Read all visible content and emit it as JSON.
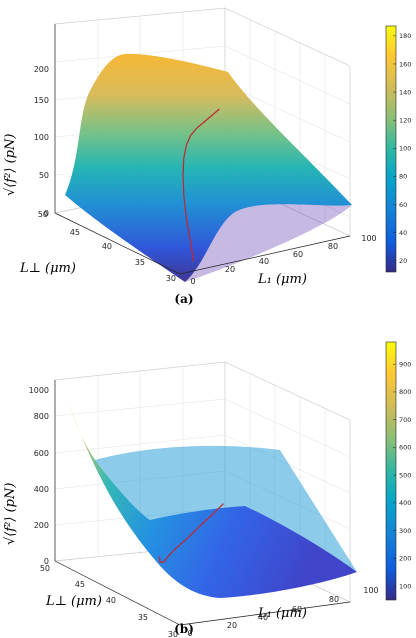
{
  "chart_data": [
    {
      "type": "surface3d",
      "caption": "(a)",
      "xlabel": "L₁ (μm)",
      "ylabel": "L⊥ (μm)",
      "zlabel": "√⟨f²⟩ (pN)",
      "x_ticks": [
        0,
        20,
        40,
        60,
        80,
        100
      ],
      "y_ticks": [
        30,
        35,
        40,
        45,
        50
      ],
      "z_ticks": [
        0,
        50,
        100,
        150,
        200
      ],
      "xlim": [
        0,
        100
      ],
      "ylim": [
        30,
        50
      ],
      "zlim": [
        0,
        200
      ],
      "colorbar_ticks": [
        20,
        40,
        60,
        80,
        100,
        120,
        140,
        160,
        180
      ],
      "colorbar_range": [
        12,
        187
      ],
      "colormap": "parula",
      "curve_color": "#c0272d",
      "curve": [
        {
          "x": 8,
          "y": 30,
          "z": 10
        },
        {
          "x": 10,
          "y": 31,
          "z": 25
        },
        {
          "x": 13,
          "y": 32.5,
          "z": 45
        },
        {
          "x": 17,
          "y": 34,
          "z": 62
        },
        {
          "x": 22,
          "y": 35.5,
          "z": 78
        },
        {
          "x": 28,
          "y": 37,
          "z": 89
        },
        {
          "x": 35,
          "y": 38.5,
          "z": 95
        },
        {
          "x": 43,
          "y": 40,
          "z": 97
        },
        {
          "x": 52,
          "y": 41.5,
          "z": 96
        },
        {
          "x": 62,
          "y": 43,
          "z": 94
        },
        {
          "x": 72,
          "y": 44.5,
          "z": 92
        },
        {
          "x": 82,
          "y": 46,
          "z": 90
        }
      ]
    },
    {
      "type": "surface3d",
      "caption": "(b)",
      "xlabel": "L₁ (μm)",
      "ylabel": "L⊥ (μm)",
      "zlabel": "√⟨f²⟩ (pN)",
      "x_ticks": [
        0,
        20,
        40,
        60,
        80,
        100
      ],
      "y_ticks": [
        30,
        35,
        40,
        45,
        50
      ],
      "z_ticks": [
        0,
        200,
        400,
        600,
        800,
        1000
      ],
      "xlim": [
        0,
        100
      ],
      "ylim": [
        30,
        50
      ],
      "zlim": [
        0,
        1000
      ],
      "colorbar_ticks": [
        100,
        200,
        300,
        400,
        500,
        600,
        700,
        800,
        900
      ],
      "colorbar_range": [
        50,
        980
      ],
      "colormap": "parula",
      "curve_color": "#c0272d",
      "curve": [
        {
          "x": 10,
          "y": 36,
          "z": 260
        },
        {
          "x": 14,
          "y": 37,
          "z": 205
        },
        {
          "x": 20,
          "y": 38,
          "z": 182
        },
        {
          "x": 28,
          "y": 39.5,
          "z": 176
        },
        {
          "x": 38,
          "y": 41,
          "z": 180
        },
        {
          "x": 50,
          "y": 42.5,
          "z": 192
        },
        {
          "x": 62,
          "y": 44,
          "z": 210
        },
        {
          "x": 75,
          "y": 45.5,
          "z": 232
        },
        {
          "x": 88,
          "y": 47,
          "z": 258
        }
      ]
    }
  ]
}
